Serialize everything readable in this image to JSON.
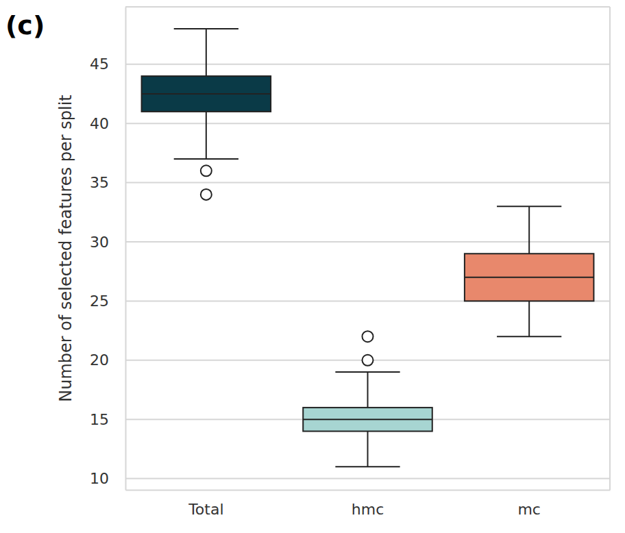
{
  "chart_data": {
    "type": "box",
    "title": "(c)",
    "y_label": "Number of selected features per split",
    "categories": [
      "Total",
      "hmc",
      "mc"
    ],
    "colors": [
      "#0a3a47",
      "#a7d5d2",
      "#e8886c"
    ],
    "boxes": [
      {
        "whislo": 37,
        "q1": 41,
        "med": 42.5,
        "q3": 44,
        "whishi": 48,
        "fliers": [
          36,
          34
        ]
      },
      {
        "whislo": 11,
        "q1": 14,
        "med": 15,
        "q3": 16,
        "whishi": 19,
        "fliers": [
          20,
          22
        ]
      },
      {
        "whislo": 22,
        "q1": 25,
        "med": 27,
        "q3": 29,
        "whishi": 33,
        "fliers": []
      }
    ],
    "ylim": [
      9.05,
      49.85
    ],
    "yticks": [
      10,
      15,
      20,
      25,
      30,
      35,
      40,
      45
    ],
    "grid": true
  }
}
